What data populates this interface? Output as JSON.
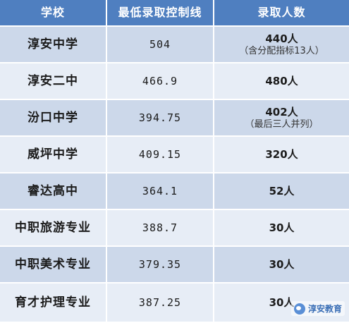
{
  "headers": [
    "学校",
    "最低录取控制线",
    "录取人数"
  ],
  "rows": [
    {
      "school": "淳安中学",
      "score": "504",
      "count": "440人",
      "note": "（含分配指标13人）"
    },
    {
      "school": "淳安二中",
      "score": "466.9",
      "count": "480人",
      "note": ""
    },
    {
      "school": "汾口中学",
      "score": "394.75",
      "count": "402人",
      "note": "（最后三人并列）"
    },
    {
      "school": "威坪中学",
      "score": "409.15",
      "count": "320人",
      "note": ""
    },
    {
      "school": "睿达高中",
      "score": "364.1",
      "count": "52人",
      "note": ""
    },
    {
      "school": "中职旅游专业",
      "score": "388.7",
      "count": "30人",
      "note": ""
    },
    {
      "school": "中职美术专业",
      "score": "379.35",
      "count": "30人",
      "note": ""
    },
    {
      "school": "育才护理专业",
      "score": "387.25",
      "count": "30人",
      "note": ""
    }
  ],
  "watermark": {
    "text": "淳安教育",
    "icon": "wechat-logo-icon"
  },
  "colors": {
    "header_bg": "#4f7fc0",
    "row_dark": "#ccd8ea",
    "row_light": "#e7edf6"
  }
}
